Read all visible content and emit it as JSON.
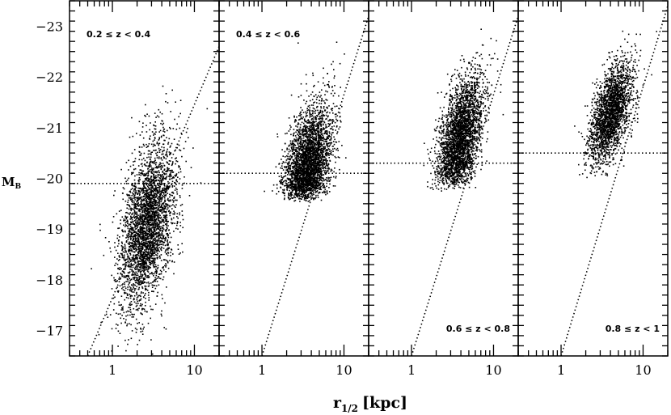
{
  "chart_data": {
    "type": "scatter",
    "ylabel": "M",
    "ylabel_sub": "B",
    "xlabel": "r",
    "xlabel_sub": "1/2",
    "xlabel_unit": "[kpc]",
    "x_scale": "log",
    "y_inverted": true,
    "xlim": [
      0.3,
      20
    ],
    "ylim": [
      -16.5,
      -23.5
    ],
    "x_ticks": [
      {
        "value": 1,
        "label": "1"
      },
      {
        "value": 10,
        "label": "10"
      }
    ],
    "y_ticks": [
      {
        "value": -17,
        "label": "−17"
      },
      {
        "value": -18,
        "label": "−18"
      },
      {
        "value": -19,
        "label": "−19"
      },
      {
        "value": -20,
        "label": "−20"
      },
      {
        "value": -21,
        "label": "−21"
      },
      {
        "value": -22,
        "label": "−22"
      },
      {
        "value": -23,
        "label": "−23"
      }
    ],
    "panels": [
      {
        "label": "0.2 ≤ z < 0.4",
        "label_pos": "top-left",
        "mag_limit": -19.9,
        "n_points": 3200,
        "cloud": {
          "logr_mean": 0.42,
          "logr_sd": 0.17,
          "mag_mean": -19.1,
          "mag_sd": 0.75,
          "mag_per_logr": -2.2
        },
        "relation": [
          {
            "r": 0.5,
            "M": -16.5
          },
          {
            "r": 20,
            "M": -22.6
          }
        ]
      },
      {
        "label": "0.4 ≤ z < 0.6",
        "label_pos": "top-left",
        "mag_limit": -20.1,
        "n_points": 3000,
        "cloud": {
          "logr_mean": 0.52,
          "logr_sd": 0.15,
          "mag_mean": -20.0,
          "mag_sd": 0.6,
          "mag_per_logr": -2.3
        },
        "relation": [
          {
            "r": 1,
            "M": -16.5
          },
          {
            "r": 20,
            "M": -23.2
          }
        ]
      },
      {
        "label": "0.6 ≤ z < 0.8",
        "label_pos": "bottom-right",
        "mag_limit": -20.3,
        "n_points": 2900,
        "cloud": {
          "logr_mean": 0.58,
          "logr_sd": 0.14,
          "mag_mean": -20.75,
          "mag_sd": 0.55,
          "mag_per_logr": -2.3
        },
        "relation": [
          {
            "r": 1,
            "M": -16.5
          },
          {
            "r": 20,
            "M": -23.2
          }
        ]
      },
      {
        "label": "0.8 ≤ z < 1",
        "label_pos": "bottom-right",
        "mag_limit": -20.5,
        "n_points": 2200,
        "cloud": {
          "logr_mean": 0.6,
          "logr_sd": 0.13,
          "mag_mean": -21.3,
          "mag_sd": 0.42,
          "mag_per_logr": -2.2
        },
        "relation": [
          {
            "r": 1,
            "M": -16.5
          },
          {
            "r": 20,
            "M": -23.4
          }
        ]
      }
    ]
  }
}
